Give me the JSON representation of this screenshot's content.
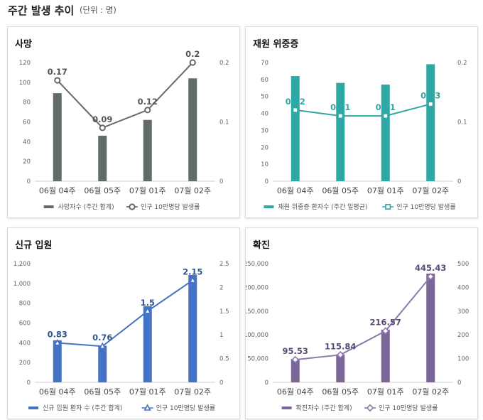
{
  "header": {
    "title": "주간 발생 추이",
    "unit": "(단위 : 명)"
  },
  "chart_data": [
    {
      "type": "bar",
      "title": "사망",
      "categories": [
        "06월 04주",
        "06월 05주",
        "07월 01주",
        "07월 02주"
      ],
      "series": [
        {
          "name": "사망자수 (주간 합계)",
          "type": "bar",
          "axis": "left",
          "values": [
            89,
            46,
            62,
            104
          ]
        },
        {
          "name": "인구 10만명당 발생률",
          "type": "line",
          "axis": "right",
          "values": [
            0.17,
            0.09,
            0.12,
            0.2
          ],
          "labels": [
            "0.17",
            "0.09",
            "0.12",
            "0.2"
          ]
        }
      ],
      "ylim": [
        0,
        120
      ],
      "yticks": [
        0,
        20,
        40,
        60,
        80,
        100,
        120
      ],
      "yticklabels": [
        "0",
        "20",
        "40",
        "60",
        "80",
        "100",
        "120"
      ],
      "y2lim": [
        0,
        0.2
      ],
      "y2ticks": [
        0,
        0.1,
        0.2
      ],
      "y2ticklabels": [
        "0",
        "0.1",
        "0.2"
      ],
      "colors": {
        "bar": "#626a6b",
        "line": "#626a6b",
        "label": "#555555"
      },
      "marker": "circle",
      "legend": "bottom"
    },
    {
      "type": "bar",
      "title": "재원 위중증",
      "categories": [
        "06월 04주",
        "06월 05주",
        "07월 01주",
        "07월 02주"
      ],
      "series": [
        {
          "name": "재원 위중증 환자수 (주간 일평균)",
          "type": "bar",
          "axis": "left",
          "values": [
            62,
            58,
            57,
            69
          ]
        },
        {
          "name": "인구 10만명당 발생률",
          "type": "line",
          "axis": "right",
          "values": [
            0.12,
            0.11,
            0.11,
            0.13
          ],
          "labels": [
            "0.12",
            "0.11",
            "0.11",
            "0.13"
          ]
        }
      ],
      "ylim": [
        0,
        70
      ],
      "yticks": [
        0,
        10,
        20,
        30,
        40,
        50,
        60,
        70
      ],
      "yticklabels": [
        "0",
        "10",
        "20",
        "30",
        "40",
        "50",
        "60",
        "70"
      ],
      "y2lim": [
        0,
        0.2
      ],
      "y2ticks": [
        0,
        0.1,
        0.2
      ],
      "y2ticklabels": [
        "0",
        "0.1",
        "0.2"
      ],
      "colors": {
        "bar": "#2ea8a5",
        "line": "#2ea8a5",
        "label": "#2ea8a5"
      },
      "marker": "square",
      "legend": "bottom"
    },
    {
      "type": "bar",
      "title": "신규 입원",
      "categories": [
        "06월 04주",
        "06월 05주",
        "07월 01주",
        "07월 02주"
      ],
      "series": [
        {
          "name": "신규 입원 환자 수 (주간 합계)",
          "type": "bar",
          "axis": "left",
          "values": [
            425,
            370,
            770,
            1085
          ]
        },
        {
          "name": "인구 10만명당 발생률",
          "type": "line",
          "axis": "right",
          "values": [
            0.83,
            0.76,
            1.5,
            2.15
          ],
          "labels": [
            "0.83",
            "0.76",
            "1.5",
            "2.15"
          ]
        }
      ],
      "ylim": [
        0,
        1200
      ],
      "yticks": [
        0,
        200,
        400,
        600,
        800,
        1000,
        1200
      ],
      "yticklabels": [
        "0",
        "200",
        "400",
        "600",
        "800",
        "1,000",
        "1,200"
      ],
      "y2lim": [
        0,
        2.5
      ],
      "y2ticks": [
        0,
        0.5,
        1,
        1.5,
        2,
        2.5
      ],
      "y2ticklabels": [
        "0",
        "0.5",
        "1",
        "1.5",
        "2",
        "2.5"
      ],
      "colors": {
        "bar": "#4472c4",
        "line": "#4472c4",
        "label": "#2f5597"
      },
      "marker": "triangle",
      "legend": "bottom"
    },
    {
      "type": "bar",
      "title": "확진",
      "categories": [
        "06월 04주",
        "06월 05주",
        "07월 01주",
        "07월 02주"
      ],
      "series": [
        {
          "name": "확진자수 (주간 합계)",
          "type": "bar",
          "axis": "left",
          "values": [
            49000,
            59000,
            111000,
            229000
          ]
        },
        {
          "name": "인구 10만명당 발생률",
          "type": "line",
          "axis": "right",
          "values": [
            95.53,
            115.84,
            216.57,
            445.43
          ],
          "labels": [
            "95.53",
            "115.84",
            "216.57",
            "445.43"
          ]
        }
      ],
      "ylim": [
        0,
        250000
      ],
      "yticks": [
        0,
        50000,
        100000,
        150000,
        200000,
        250000
      ],
      "yticklabels": [
        "0",
        "50,000",
        "100,000",
        "150,000",
        "200,000",
        "250,000"
      ],
      "y2lim": [
        0,
        500
      ],
      "y2ticks": [
        0,
        100,
        200,
        300,
        400,
        500
      ],
      "y2ticklabels": [
        "0",
        "100",
        "200",
        "300",
        "400",
        "500"
      ],
      "colors": {
        "bar": "#7a6699",
        "line": "#8a7aac",
        "label": "#5b4b78"
      },
      "marker": "diamond",
      "legend": "bottom"
    }
  ]
}
